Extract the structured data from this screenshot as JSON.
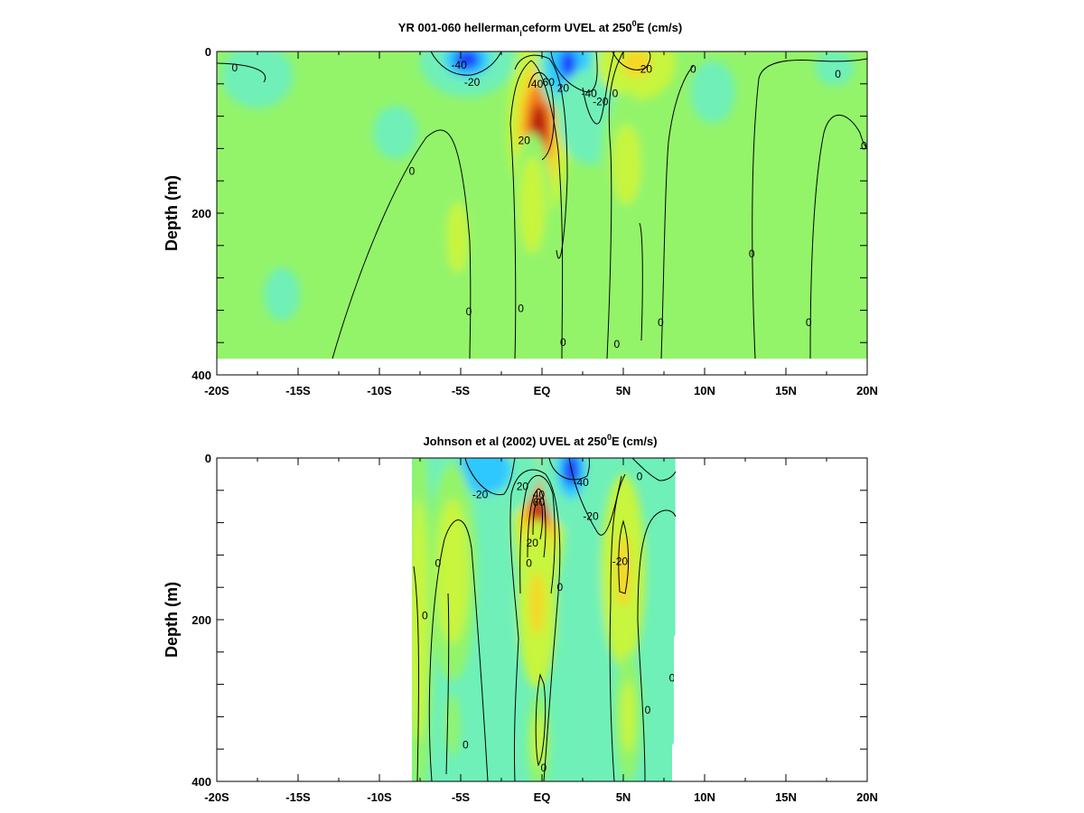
{
  "colors": {
    "strong_westward": "#1f3cff",
    "westward": "#2ec8ff",
    "weak_westward": "#6ff0b8",
    "zero": "#93f46a",
    "weak_eastward": "#c8f53c",
    "eastward": "#f6d728",
    "strong_eastward": "#f57d1c",
    "max_eastward": "#b7140f",
    "contour": "#000000",
    "axes": "#000000"
  },
  "chart_data": [
    {
      "type": "heatmap",
      "title": {
        "prefix": "YR 001-060 hellerman",
        "sub": "i",
        "mid": "ceform UVEL at 250",
        "sup": "0",
        "suffix": "E (cm/s)"
      },
      "xlabel": "",
      "ylabel": "Depth (m)",
      "xlim": [
        -20,
        20
      ],
      "ylim": [
        400,
        0
      ],
      "xticks": [
        {
          "value": -20,
          "label": "-20S"
        },
        {
          "value": -15,
          "label": "-15S"
        },
        {
          "value": -10,
          "label": "-10S"
        },
        {
          "value": -5,
          "label": "-5S"
        },
        {
          "value": 0,
          "label": "EQ"
        },
        {
          "value": 5,
          "label": "5N"
        },
        {
          "value": 10,
          "label": "10N"
        },
        {
          "value": 15,
          "label": "15N"
        },
        {
          "value": 20,
          "label": "20N"
        }
      ],
      "yticks": [
        {
          "value": 0,
          "label": "0"
        },
        {
          "value": 200,
          "label": "200"
        },
        {
          "value": 400,
          "label": "400"
        }
      ],
      "data_extent": {
        "x": [
          -20,
          20
        ],
        "depth": [
          0,
          380
        ]
      },
      "background_value": 0,
      "features": [
        {
          "x": -0.2,
          "depth": 95,
          "sx": 0.9,
          "sd": 55,
          "value": 90
        },
        {
          "x": -0.6,
          "depth": 190,
          "sx": 0.8,
          "sd": 60,
          "value": 15
        },
        {
          "x": -4.6,
          "depth": 10,
          "sx": 1.4,
          "sd": 22,
          "value": -50
        },
        {
          "x": 1.6,
          "depth": 15,
          "sx": 0.9,
          "sd": 30,
          "value": -55
        },
        {
          "x": 3.0,
          "depth": 80,
          "sx": 1.4,
          "sd": 40,
          "value": -15
        },
        {
          "x": 5.8,
          "depth": 15,
          "sx": 1.6,
          "sd": 30,
          "value": 25
        },
        {
          "x": 5.2,
          "depth": 140,
          "sx": 1.6,
          "sd": 90,
          "value": 12
        },
        {
          "x": -5.2,
          "depth": 230,
          "sx": 1.2,
          "sd": 80,
          "value": 10
        },
        {
          "x": -17.5,
          "depth": 30,
          "sx": 2.2,
          "sd": 40,
          "value": -10
        },
        {
          "x": -9,
          "depth": 100,
          "sx": 2.5,
          "sd": 60,
          "value": -6
        },
        {
          "x": -16,
          "depth": 300,
          "sx": 2.0,
          "sd": 60,
          "value": -6
        },
        {
          "x": 10.5,
          "depth": 50,
          "sx": 2.5,
          "sd": 70,
          "value": -7
        },
        {
          "x": 18,
          "depth": 20,
          "sx": 2.2,
          "sd": 40,
          "value": -6
        }
      ],
      "contour_labels": [
        {
          "x": -18.9,
          "depth": 20,
          "text": "0"
        },
        {
          "x": -8,
          "depth": 148,
          "text": "0"
        },
        {
          "x": -5.1,
          "depth": 17,
          "text": "-40"
        },
        {
          "x": -4.3,
          "depth": 38,
          "text": "-20"
        },
        {
          "x": -4.5,
          "depth": 322,
          "text": "0"
        },
        {
          "x": -1.3,
          "depth": 318,
          "text": "0"
        },
        {
          "x": -1.1,
          "depth": 110,
          "text": "20"
        },
        {
          "x": -0.3,
          "depth": 40,
          "text": "40"
        },
        {
          "x": 0.4,
          "depth": 38,
          "text": "60"
        },
        {
          "x": 1.3,
          "depth": 45,
          "text": "20"
        },
        {
          "x": 2.9,
          "depth": 52,
          "text": "-40"
        },
        {
          "x": 3.6,
          "depth": 62,
          "text": "-20"
        },
        {
          "x": 4.5,
          "depth": 52,
          "text": "0"
        },
        {
          "x": 6.3,
          "depth": 22,
          "text": "-20"
        },
        {
          "x": 9.3,
          "depth": 22,
          "text": "0"
        },
        {
          "x": 7.3,
          "depth": 335,
          "text": "0"
        },
        {
          "x": 12.9,
          "depth": 250,
          "text": "0"
        },
        {
          "x": 16.4,
          "depth": 335,
          "text": "0"
        },
        {
          "x": 18.2,
          "depth": 28,
          "text": "0"
        },
        {
          "x": 19.8,
          "depth": 117,
          "text": "0"
        },
        {
          "x": 1.3,
          "depth": 360,
          "text": "0"
        },
        {
          "x": 4.6,
          "depth": 362,
          "text": "0"
        }
      ]
    },
    {
      "type": "heatmap",
      "title": {
        "prefix": "Johnson et al (2002) UVEL at 250",
        "sub": "",
        "mid": "",
        "sup": "0",
        "suffix": "E (cm/s)"
      },
      "xlabel": "",
      "ylabel": "Depth (m)",
      "xlim": [
        -20,
        20
      ],
      "ylim": [
        400,
        0
      ],
      "xticks": [
        {
          "value": -20,
          "label": "-20S"
        },
        {
          "value": -15,
          "label": "-15S"
        },
        {
          "value": -10,
          "label": "-10S"
        },
        {
          "value": -5,
          "label": "-5S"
        },
        {
          "value": 0,
          "label": "EQ"
        },
        {
          "value": 5,
          "label": "5N"
        },
        {
          "value": 10,
          "label": "10N"
        },
        {
          "value": 15,
          "label": "15N"
        },
        {
          "value": 20,
          "label": "20N"
        }
      ],
      "yticks": [
        {
          "value": 0,
          "label": "0"
        },
        {
          "value": 200,
          "label": "200"
        },
        {
          "value": 400,
          "label": "400"
        }
      ],
      "data_extent": {
        "x": [
          -8,
          8.2
        ],
        "depth": [
          0,
          400
        ]
      },
      "background_value": -5,
      "features": [
        {
          "x": -0.2,
          "depth": 75,
          "sx": 0.75,
          "sd": 50,
          "value": 95
        },
        {
          "x": -0.3,
          "depth": 180,
          "sx": 0.8,
          "sd": 70,
          "value": 25
        },
        {
          "x": -0.2,
          "depth": 350,
          "sx": 0.7,
          "sd": 60,
          "value": 12
        },
        {
          "x": -3.5,
          "depth": 15,
          "sx": 1.6,
          "sd": 30,
          "value": -40
        },
        {
          "x": 1.8,
          "depth": 15,
          "sx": 0.9,
          "sd": 35,
          "value": -50
        },
        {
          "x": 5.0,
          "depth": 140,
          "sx": 0.9,
          "sd": 80,
          "value": 30
        },
        {
          "x": 5.3,
          "depth": 320,
          "sx": 0.8,
          "sd": 80,
          "value": 10
        },
        {
          "x": -5.5,
          "depth": 140,
          "sx": 1.0,
          "sd": 90,
          "value": 22
        },
        {
          "x": -5.5,
          "depth": 330,
          "sx": 0.8,
          "sd": 70,
          "value": 8
        },
        {
          "x": -7.6,
          "depth": 200,
          "sx": 0.6,
          "sd": 150,
          "value": 15
        },
        {
          "x": -2.7,
          "depth": 220,
          "sx": 0.8,
          "sd": 150,
          "value": -10
        },
        {
          "x": 2.7,
          "depth": 240,
          "sx": 1.0,
          "sd": 150,
          "value": -10
        },
        {
          "x": 7.5,
          "depth": 200,
          "sx": 0.8,
          "sd": 150,
          "value": 3
        }
      ],
      "contour_labels": [
        {
          "x": -7.2,
          "depth": 195,
          "text": "0"
        },
        {
          "x": -6.4,
          "depth": 130,
          "text": "0"
        },
        {
          "x": -4.7,
          "depth": 355,
          "text": "0"
        },
        {
          "x": -3.8,
          "depth": 45,
          "text": "-20"
        },
        {
          "x": -1.2,
          "depth": 35,
          "text": "20"
        },
        {
          "x": -0.8,
          "depth": 130,
          "text": "0"
        },
        {
          "x": -0.6,
          "depth": 105,
          "text": "20"
        },
        {
          "x": -0.2,
          "depth": 45,
          "text": "40"
        },
        {
          "x": -0.2,
          "depth": 55,
          "text": "60"
        },
        {
          "x": 1.1,
          "depth": 160,
          "text": "0"
        },
        {
          "x": 2.4,
          "depth": 30,
          "text": "-40"
        },
        {
          "x": 3.0,
          "depth": 72,
          "text": "-20"
        },
        {
          "x": 0.1,
          "depth": 383,
          "text": "0"
        },
        {
          "x": 4.8,
          "depth": 128,
          "text": "-20"
        },
        {
          "x": 6.0,
          "depth": 23,
          "text": "0"
        },
        {
          "x": 6.5,
          "depth": 312,
          "text": "0"
        },
        {
          "x": 8.0,
          "depth": 272,
          "text": "0"
        }
      ]
    }
  ]
}
